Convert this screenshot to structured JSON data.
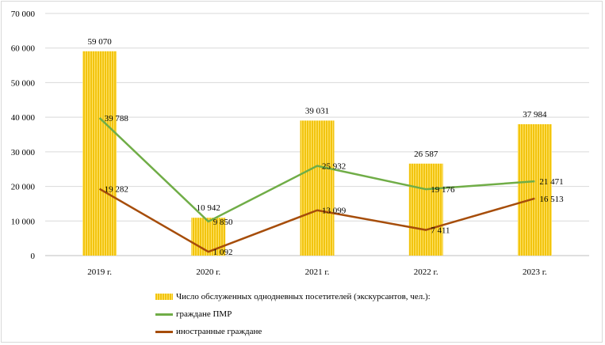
{
  "chart_data": {
    "type": "bar",
    "categories": [
      "2019 г.",
      "2020 г.",
      "2021 г.",
      "2022 г.",
      "2023 г."
    ],
    "ylim": [
      0,
      70000
    ],
    "yticks": [
      0,
      10000,
      20000,
      30000,
      40000,
      50000,
      60000,
      70000
    ],
    "ytick_labels": [
      "0",
      "10 000",
      "20 000",
      "30 000",
      "40 000",
      "50 000",
      "60 000",
      "70 000"
    ],
    "grid": true,
    "legend_position": "bottom",
    "series": [
      {
        "name": "Число обслуженных однодневных посетителей (экскурсантов, чел.):",
        "type": "bar",
        "color": "#f2c40f",
        "values": [
          59070,
          10942,
          39031,
          26587,
          37984
        ],
        "labels": [
          "59 070",
          "10 942",
          "39 031",
          "26 587",
          "37 984"
        ]
      },
      {
        "name": "граждане ПМР",
        "type": "line",
        "color": "#70ad47",
        "values": [
          39788,
          9850,
          25932,
          19176,
          21471
        ],
        "labels": [
          "39 788",
          "9 850",
          "25 932",
          "19 176",
          "21 471"
        ]
      },
      {
        "name": "иностранные граждане",
        "type": "line",
        "color": "#a64d0a",
        "values": [
          19282,
          1092,
          13099,
          7411,
          16513
        ],
        "labels": [
          "19 282",
          "1 092",
          "13 099",
          "7 411",
          "16 513"
        ]
      }
    ]
  }
}
